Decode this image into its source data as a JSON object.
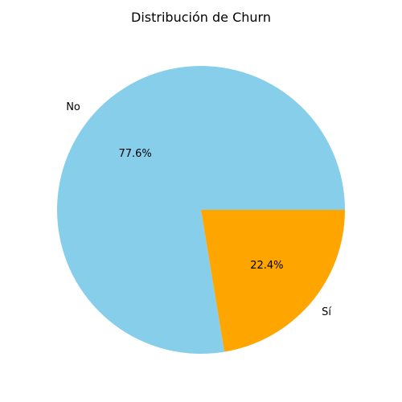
{
  "chart_data": {
    "type": "pie",
    "title": "Distribución de Churn",
    "slices": [
      {
        "label": "No",
        "value": 77.6,
        "pct_label": "77.6%",
        "color": "#87CEEB"
      },
      {
        "label": "Sí",
        "value": 22.4,
        "pct_label": "22.4%",
        "color": "#FFA500"
      }
    ],
    "start_angle_deg": 0,
    "direction": "counterclockwise",
    "legend": "none"
  }
}
